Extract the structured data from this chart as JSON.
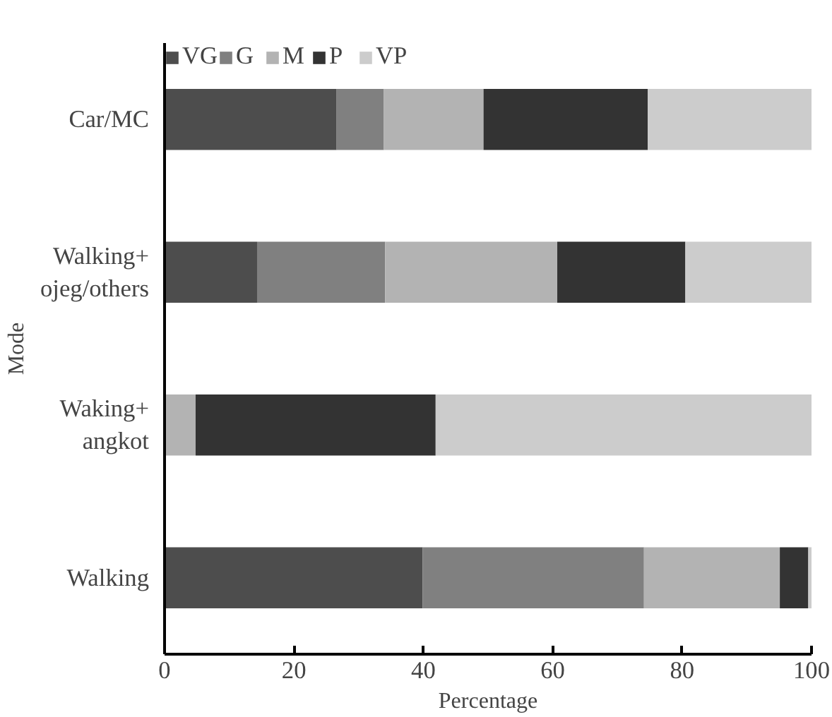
{
  "chart_data": {
    "type": "bar",
    "orientation": "horizontal",
    "stacked": true,
    "xlabel": "Percentage",
    "ylabel": "Mode",
    "categories": [
      "Car/MC",
      "Walking+\nojeg/others",
      "Waking+\nangkot",
      "Walking"
    ],
    "series": [
      {
        "name": "VG",
        "color": "#4d4d4d",
        "values": [
          26.6,
          14.3,
          0,
          39.9
        ]
      },
      {
        "name": "G",
        "color": "#808080",
        "values": [
          7.3,
          19.8,
          0,
          34.2
        ]
      },
      {
        "name": "M",
        "color": "#b3b3b3",
        "values": [
          15.4,
          26.6,
          4.8,
          21.0
        ]
      },
      {
        "name": "P",
        "color": "#333333",
        "values": [
          25.4,
          19.8,
          37.1,
          4.4
        ]
      },
      {
        "name": "VP",
        "color": "#cccccc",
        "values": [
          25.3,
          19.5,
          58.1,
          0.5
        ]
      }
    ],
    "xlim": [
      0,
      100
    ],
    "xticks": [
      0,
      20,
      40,
      60,
      80,
      100
    ],
    "grid": false,
    "legend": "top left"
  }
}
